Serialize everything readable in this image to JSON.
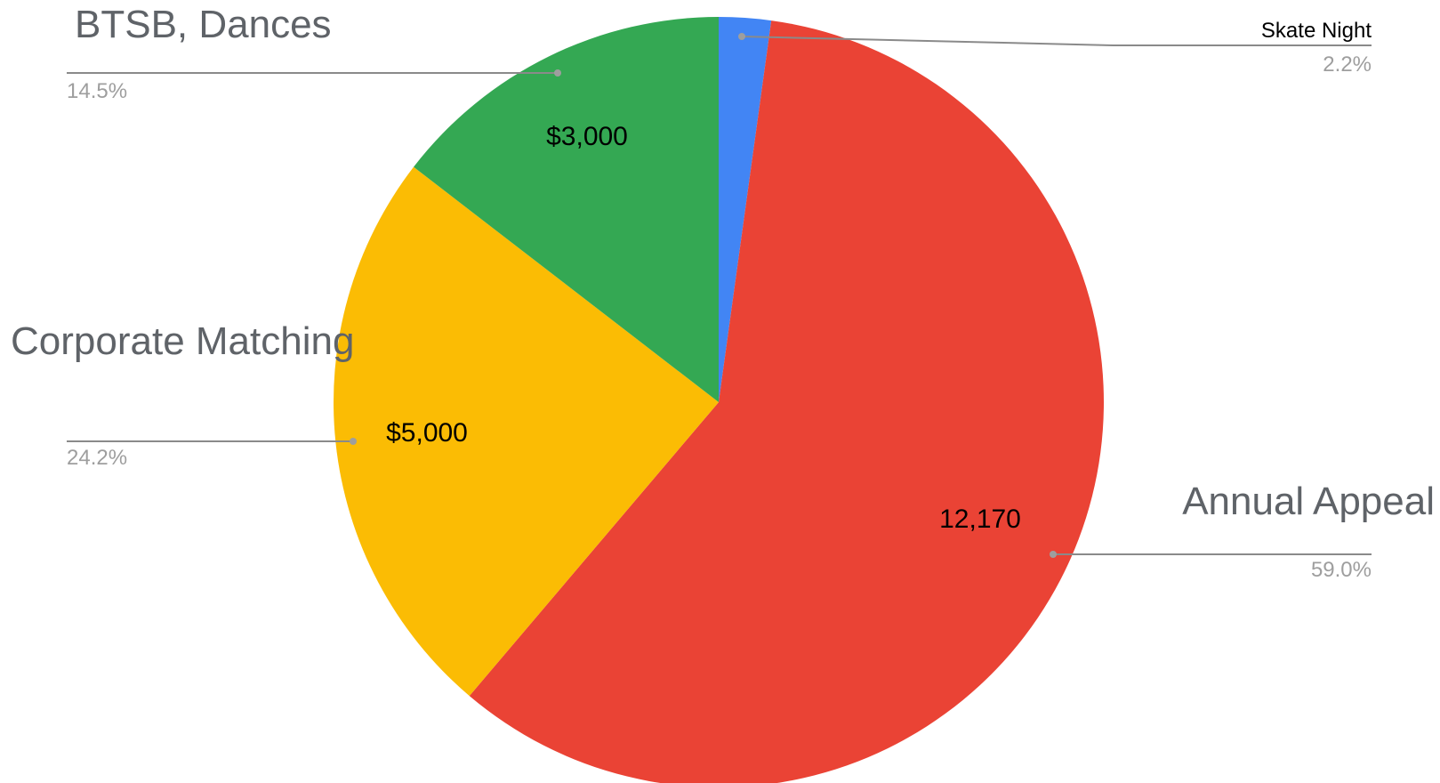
{
  "chart_data": {
    "type": "pie",
    "slices": [
      {
        "label": "Skate Night",
        "value": 450,
        "percent_label": "2.2%",
        "value_label": "",
        "color": "#4285F4"
      },
      {
        "label": "Annual Appeal",
        "value": 12170,
        "percent_label": "59.0%",
        "value_label": "12,170",
        "color": "#EA4335"
      },
      {
        "label": "Corporate Matching",
        "value": 5000,
        "percent_label": "24.2%",
        "value_label": "$5,000",
        "color": "#FBBC04"
      },
      {
        "label": "BTSB, Dances",
        "value": 3000,
        "percent_label": "14.5%",
        "value_label": "$3,000",
        "color": "#34A853"
      }
    ],
    "legend": "none"
  }
}
